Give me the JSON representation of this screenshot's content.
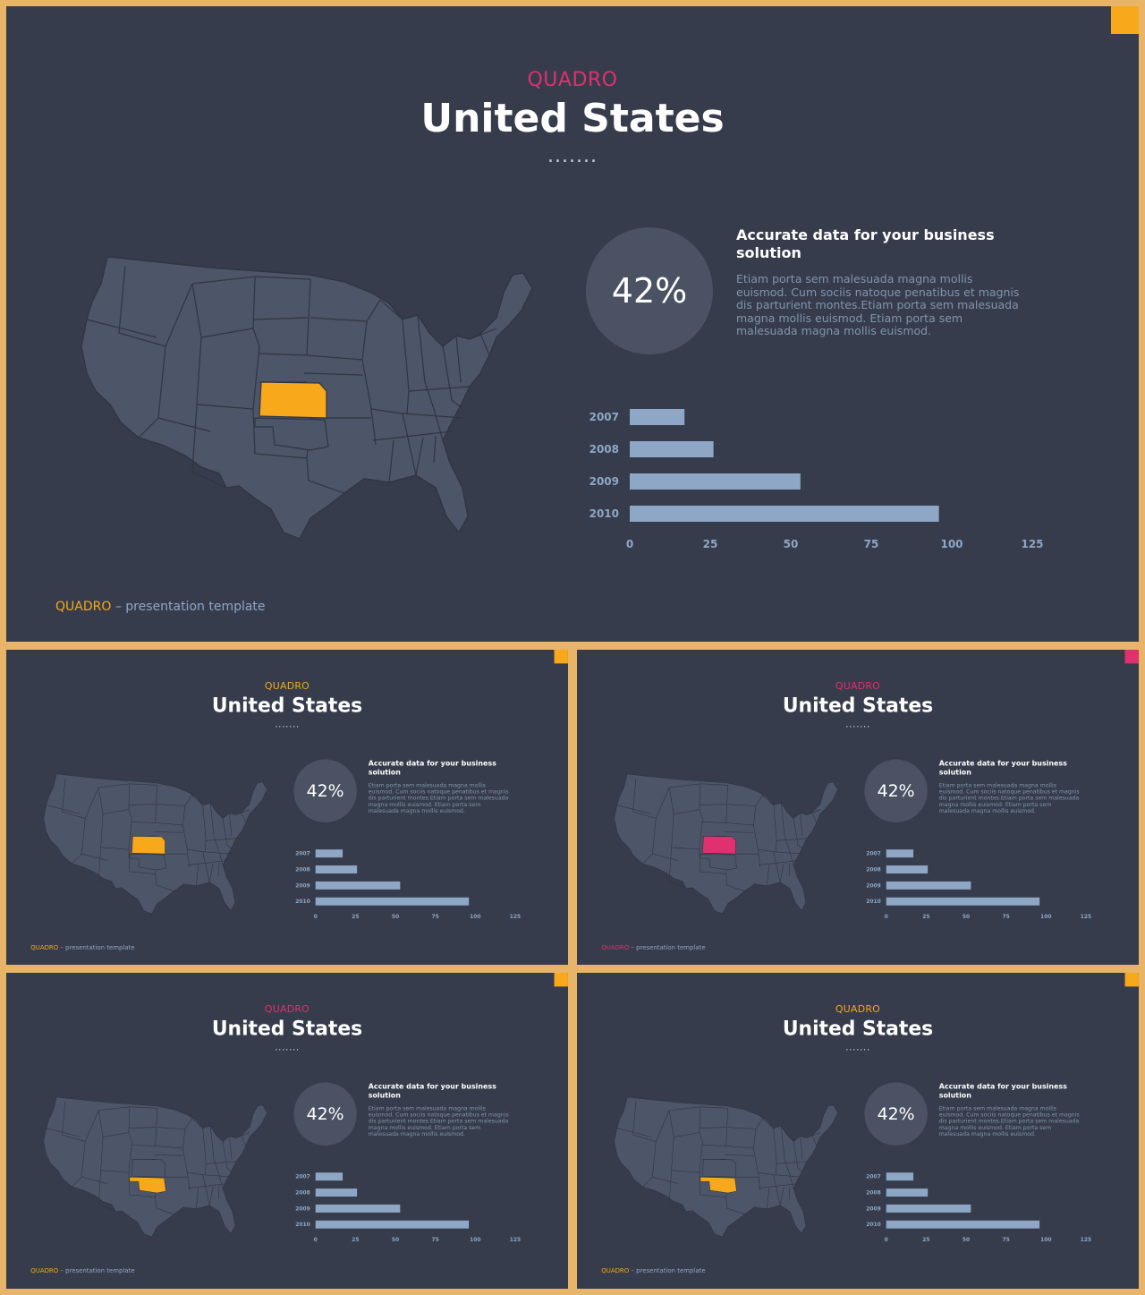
{
  "colors": {
    "frame": "#e8b468",
    "slide_bg": "#363c4b",
    "state": "#4d5568",
    "state_stroke": "#2f3542",
    "bar": "#8ea7c6",
    "yellow": "#f7a81b",
    "pink": "#e0306f",
    "circle": "#4a5263"
  },
  "slides": [
    {
      "brand": "QUADRO",
      "title": "United States",
      "dots": ".......",
      "stat": "42%",
      "heading": "Accurate data for your business solution",
      "desc": "Etiam porta sem malesuada magna mollis euismod. Cum sociis natoque penatibus et magnis dis parturient montes.Etiam porta sem malesuada magna mollis euismod. Etiam porta sem malesuada magna mollis euismod.",
      "footer_brand": "QUADRO",
      "footer_text": " – presentation template",
      "brand_color": "#e0306f",
      "corner_color": "#f7a81b",
      "highlight_color": "#f7a81b",
      "footer_brand_color": "#f7a81b",
      "highlight_state": "Kansas"
    },
    {
      "brand": "QUADRO",
      "title": "United States",
      "dots": ".......",
      "stat": "42%",
      "heading": "Accurate data for your business solution",
      "desc": "Etiam porta sem malesuada magna mollis euismod. Cum sociis natoque penatibus et magnis dis parturient montes.Etiam porta sem malesuada magna mollis euismod. Etiam porta sem malesuada magna mollis euismod.",
      "footer_brand": "QUADRO",
      "footer_text": " – presentation template",
      "brand_color": "#f7a81b",
      "corner_color": "#f7a81b",
      "highlight_color": "#f7a81b",
      "footer_brand_color": "#f7a81b",
      "highlight_state": "Kansas"
    },
    {
      "brand": "QUADRO",
      "title": "United States",
      "dots": ".......",
      "stat": "42%",
      "heading": "Accurate data for your business solution",
      "desc": "Etiam porta sem malesuada magna mollis euismod. Cum sociis natoque penatibus et magnis dis parturient montes.Etiam porta sem malesuada magna mollis euismod. Etiam porta sem malesuada magna mollis euismod.",
      "footer_brand": "QUADRO",
      "footer_text": " – presentation template",
      "brand_color": "#e0306f",
      "corner_color": "#e0306f",
      "highlight_color": "#e0306f",
      "footer_brand_color": "#e0306f",
      "highlight_state": "Kansas"
    },
    {
      "brand": "QUADRO",
      "title": "United States",
      "dots": ".......",
      "stat": "42%",
      "heading": "Accurate data for your business solution",
      "desc": "Etiam porta sem malesuada magna mollis euismod. Cum sociis natoque penatibus et magnis dis parturient montes.Etiam porta sem malesuada magna mollis euismod. Etiam porta sem malesuada magna mollis euismod.",
      "footer_brand": "QUADRO",
      "footer_text": " – presentation template",
      "brand_color": "#e0306f",
      "corner_color": "#f7a81b",
      "highlight_color": "#f7a81b",
      "footer_brand_color": "#f7a81b",
      "highlight_state": "Oklahoma"
    },
    {
      "brand": "QUADRO",
      "title": "United States",
      "dots": ".......",
      "stat": "42%",
      "heading": "Accurate data for your business solution",
      "desc": "Etiam porta sem malesuada magna mollis euismod. Cum sociis natoque penatibus et magnis dis parturient montes.Etiam porta sem malesuada magna mollis euismod. Etiam porta sem malesuada magna mollis euismod.",
      "footer_brand": "QUADRO",
      "footer_text": " – presentation template",
      "brand_color": "#f7a81b",
      "corner_color": "#f7a81b",
      "highlight_color": "#f7a81b",
      "footer_brand_color": "#f7a81b",
      "highlight_state": "Oklahoma"
    }
  ],
  "chart_data": {
    "type": "bar",
    "orientation": "horizontal",
    "categories": [
      "2007",
      "2008",
      "2009",
      "2010"
    ],
    "values": [
      17,
      26,
      53,
      96
    ],
    "xticks": [
      "0",
      "25",
      "50",
      "75",
      "100",
      "125"
    ],
    "xlim": [
      0,
      125
    ],
    "bar_color": "#8ea7c6",
    "grid": false
  }
}
